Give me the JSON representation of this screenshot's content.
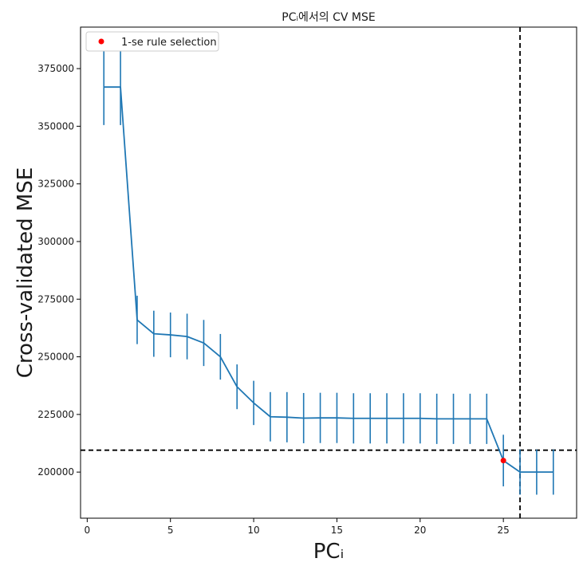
{
  "chart_data": {
    "type": "line",
    "title": "PCᵢ에서의 CV MSE",
    "xlabel": "PCᵢ",
    "ylabel": "Cross-validated MSE",
    "xlim": [
      -0.4,
      29.4
    ],
    "ylim": [
      180000,
      393000
    ],
    "xticks": [
      0,
      5,
      10,
      15,
      20,
      25
    ],
    "yticks": [
      200000,
      225000,
      250000,
      275000,
      300000,
      325000,
      350000,
      375000
    ],
    "grid": false,
    "legend": {
      "placement": "top-left",
      "entries": [
        "1-se rule selection"
      ]
    },
    "series": [
      {
        "kind": "errorbar",
        "color": "#1f77b4",
        "x": [
          1,
          2,
          3,
          4,
          5,
          6,
          7,
          8,
          9,
          10,
          11,
          12,
          13,
          14,
          15,
          16,
          17,
          18,
          19,
          20,
          21,
          22,
          23,
          24,
          25,
          26,
          27,
          28
        ],
        "y": [
          367000,
          367000,
          266000,
          260000,
          259500,
          258800,
          256000,
          250000,
          237000,
          230000,
          224000,
          223800,
          223400,
          223500,
          223500,
          223300,
          223300,
          223300,
          223300,
          223300,
          223100,
          223100,
          223100,
          223100,
          205000,
          200000,
          200000,
          200000
        ],
        "err": [
          16500,
          16500,
          10500,
          10000,
          9700,
          9900,
          10000,
          9900,
          9700,
          9600,
          10700,
          10900,
          10900,
          10900,
          10900,
          10900,
          10900,
          10900,
          10900,
          10900,
          10900,
          10900,
          10900,
          10900,
          11200,
          9800,
          9800,
          9800
        ]
      },
      {
        "kind": "point",
        "name": "1-se rule selection",
        "color": "#ff0000",
        "x": [
          25
        ],
        "y": [
          205000
        ]
      }
    ],
    "reference_lines": [
      {
        "orientation": "vertical",
        "value": 26,
        "style": "dashed",
        "color": "#000000"
      },
      {
        "orientation": "horizontal",
        "value": 209500,
        "style": "dashed",
        "color": "#000000"
      }
    ]
  }
}
